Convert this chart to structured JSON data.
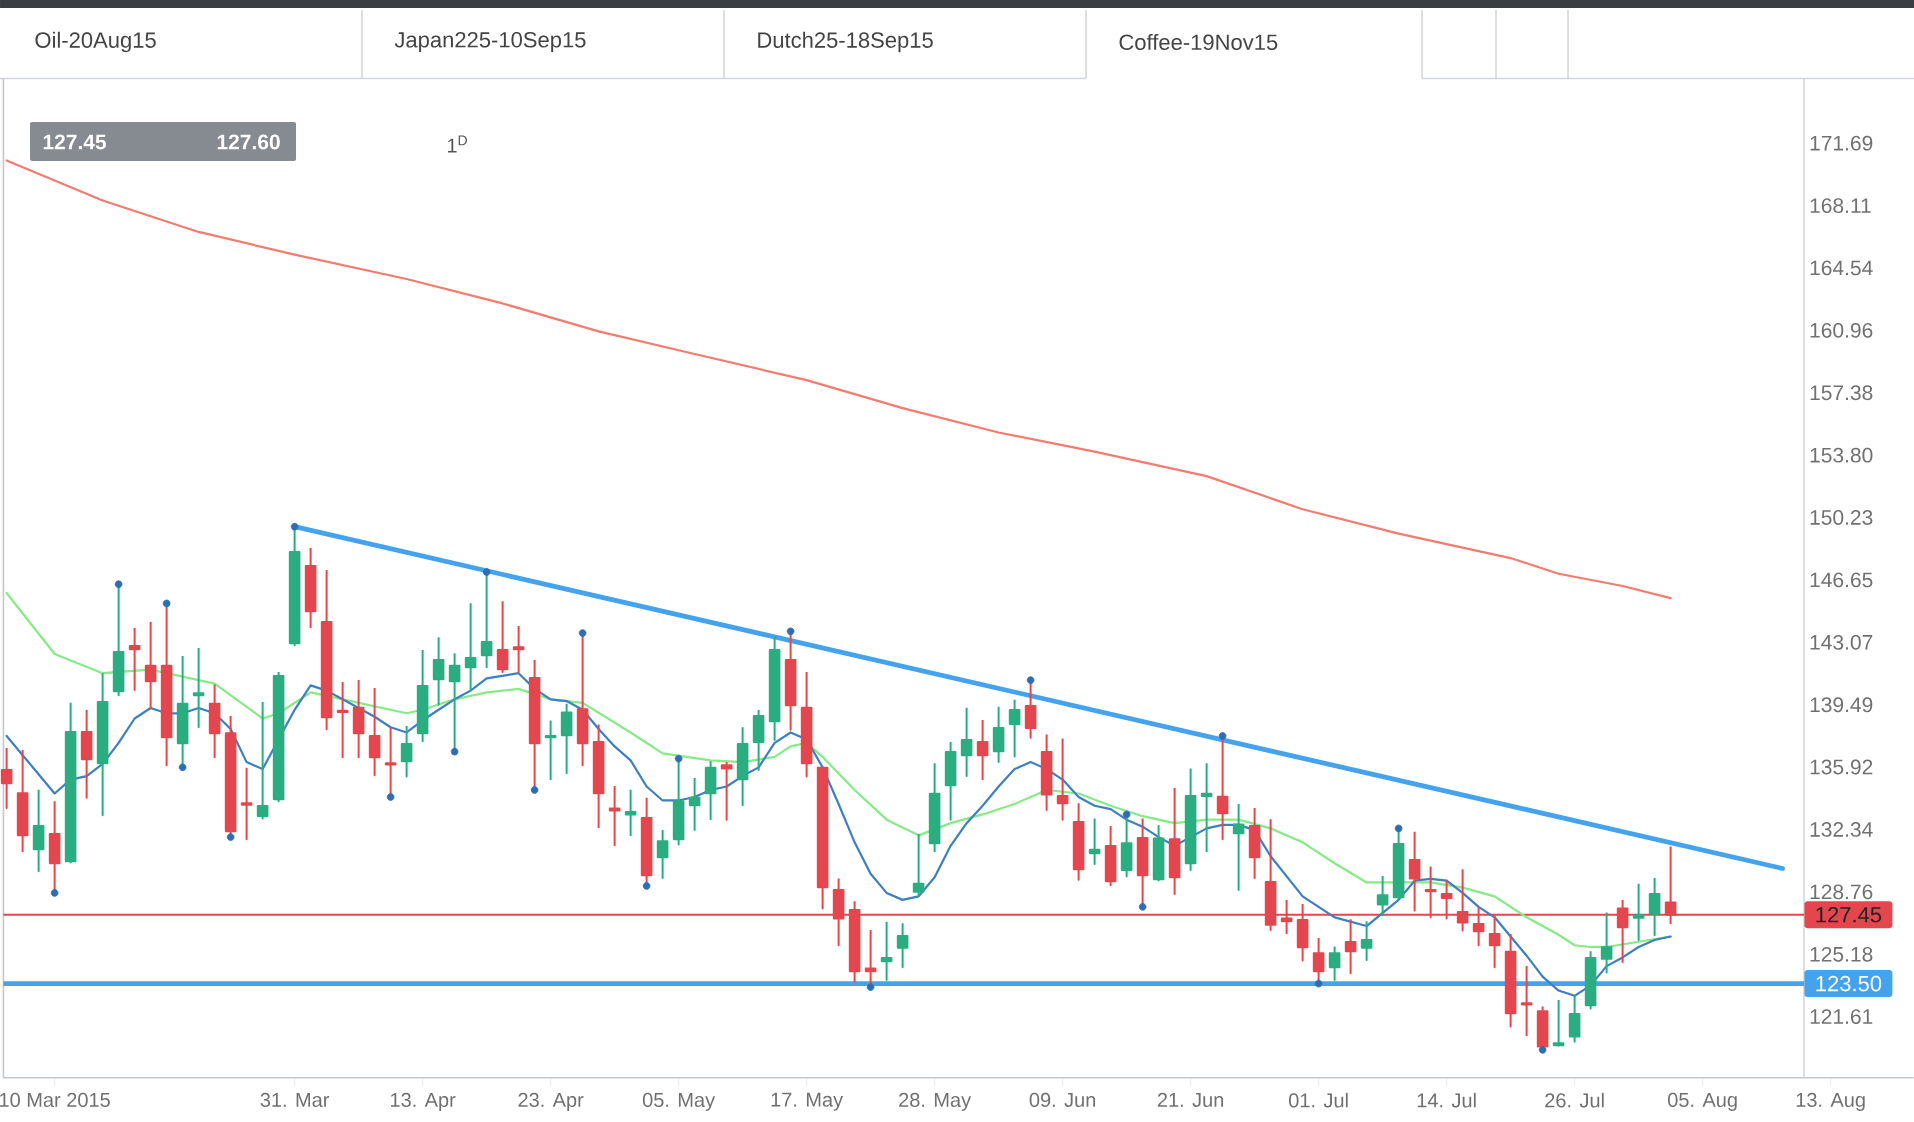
{
  "chart_data": {
    "type": "candlestick",
    "annotations": [
      "Oil-20Aug15",
      "Japan225-10Sep15",
      "Dutch25-18Sep15",
      "Coffee-19Nov15",
      "127.45",
      "127.60",
      "1$^{D}$"
    ],
    "categories": [
      null,
      null,
      null,
      "10 Mar 2015",
      null,
      null,
      null,
      null,
      null,
      null,
      null,
      null,
      null,
      null,
      null,
      null,
      null,
      null,
      "31. Mar",
      null,
      null,
      null,
      null,
      null,
      null,
      null,
      "13. Apr",
      null,
      null,
      null,
      null,
      null,
      null,
      null,
      "23. Apr",
      null,
      null,
      null,
      null,
      null,
      null,
      null,
      "05. May",
      null,
      null,
      null,
      null,
      null,
      null,
      null,
      "17. May",
      null,
      null,
      null,
      null,
      null,
      null,
      null,
      "28. May",
      null,
      null,
      null,
      null,
      null,
      null,
      null,
      "09. Jun",
      null,
      null,
      null,
      null,
      null,
      null,
      null,
      "21. Jun",
      null,
      null,
      null,
      null,
      null,
      null,
      null,
      "01. Jul",
      null,
      null,
      null,
      null,
      null,
      null,
      null,
      "14. Jul",
      null,
      null,
      null,
      null,
      null,
      null,
      null,
      "26. Jul",
      null,
      null,
      null,
      null,
      null,
      null,
      null,
      "05. Aug",
      null,
      null,
      null,
      null,
      null,
      null,
      null,
      "13. Aug"
    ],
    "ohlc": [
      [
        135.75,
        137.01,
        133.57,
        134.99
      ],
      [
        134.41,
        136.9,
        131.09,
        132.01
      ],
      [
        131.2,
        134.61,
        129.94,
        132.54
      ],
      [
        132.08,
        133.96,
        128.72,
        130.4
      ],
      [
        130.52,
        139.61,
        130.44,
        137.93
      ],
      [
        137.93,
        139.19,
        134.15,
        136.36
      ],
      [
        136.13,
        141.3,
        133.15,
        139.65
      ],
      [
        140.26,
        146.38,
        140.03,
        142.52
      ],
      [
        142.86,
        143.89,
        140.34,
        142.67
      ],
      [
        141.72,
        144.24,
        139.27,
        140.84
      ],
      [
        141.72,
        145.27,
        136.02,
        137.63
      ],
      [
        137.28,
        142.29,
        135.94,
        139.54
      ],
      [
        140.03,
        142.75,
        138.2,
        140.15
      ],
      [
        139.54,
        140.65,
        136.48,
        137.85
      ],
      [
        137.85,
        138.85,
        131.85,
        132.24
      ],
      [
        133.84,
        135.87,
        131.78,
        133.76
      ],
      [
        133.11,
        139.65,
        132.96,
        133.69
      ],
      [
        134.07,
        141.37,
        133.96,
        141.14
      ],
      [
        143.02,
        149.7,
        142.9,
        148.25
      ],
      [
        147.45,
        148.48,
        143.93,
        144.85
      ],
      [
        144.24,
        147.22,
        138.08,
        138.77
      ],
      [
        139.15,
        140.8,
        136.48,
        139.08
      ],
      [
        139.31,
        140.91,
        136.48,
        137.85
      ],
      [
        137.7,
        140.45,
        135.45,
        136.48
      ],
      [
        136.13,
        138.2,
        134.22,
        136.06
      ],
      [
        136.25,
        138.27,
        135.37,
        137.24
      ],
      [
        137.85,
        142.63,
        137.4,
        140.57
      ],
      [
        140.95,
        143.36,
        139.5,
        142.06
      ],
      [
        140.84,
        142.44,
        136.82,
        141.72
      ],
      [
        141.64,
        145.31,
        140.34,
        142.17
      ],
      [
        142.33,
        147.11,
        141.64,
        143.09
      ],
      [
        142.63,
        145.42,
        141.37,
        141.52
      ],
      [
        142.79,
        144.01,
        141.37,
        142.67
      ],
      [
        141.03,
        142.06,
        134.61,
        137.28
      ],
      [
        137.63,
        138.58,
        135.22,
        137.7
      ],
      [
        137.74,
        139.54,
        135.56,
        139.04
      ],
      [
        139.23,
        143.55,
        136.02,
        137.28
      ],
      [
        137.36,
        138.35,
        132.46,
        134.41
      ],
      [
        133.54,
        134.83,
        131.43,
        133.42
      ],
      [
        133.19,
        134.61,
        132.01,
        133.34
      ],
      [
        133.0,
        134.15,
        129.06,
        129.71
      ],
      [
        130.74,
        132.31,
        129.56,
        131.66
      ],
      [
        131.78,
        136.4,
        131.47,
        133.96
      ],
      [
        133.73,
        135.29,
        132.31,
        134.15
      ],
      [
        134.41,
        136.25,
        132.92,
        135.87
      ],
      [
        136.02,
        136.21,
        132.89,
        135.83
      ],
      [
        135.22,
        138.2,
        133.73,
        137.24
      ],
      [
        137.36,
        139.19,
        135.75,
        138.85
      ],
      [
        138.54,
        143.4,
        137.47,
        142.63
      ],
      [
        142.06,
        143.74,
        138.05,
        139.46
      ],
      [
        139.31,
        141.37,
        135.37,
        136.13
      ],
      [
        135.87,
        135.91,
        127.8,
        129.02
      ],
      [
        128.87,
        129.52,
        125.7,
        127.23
      ],
      [
        127.72,
        128.22,
        123.6,
        124.21
      ],
      [
        124.36,
        126.58,
        123.33,
        124.21
      ],
      [
        124.78,
        127.04,
        123.71,
        124.97
      ],
      [
        125.55,
        126.96,
        124.44,
        126.23
      ],
      [
        128.76,
        132.08,
        128.57,
        129.22
      ],
      [
        131.55,
        136.13,
        131.09,
        134.38
      ],
      [
        134.87,
        137.36,
        132.89,
        136.78
      ],
      [
        136.59,
        139.31,
        135.41,
        137.47
      ],
      [
        137.36,
        138.62,
        135.22,
        136.59
      ],
      [
        136.82,
        139.38,
        136.21,
        138.16
      ],
      [
        138.39,
        139.77,
        136.52,
        139.19
      ],
      [
        139.42,
        140.87,
        137.59,
        138.16
      ],
      [
        136.78,
        137.78,
        133.46,
        134.34
      ],
      [
        134.26,
        137.55,
        132.89,
        133.84
      ],
      [
        132.77,
        133.84,
        129.45,
        130.06
      ],
      [
        130.97,
        132.96,
        130.36,
        131.17
      ],
      [
        131.39,
        132.54,
        129.14,
        129.37
      ],
      [
        130.02,
        133.19,
        129.64,
        131.55
      ],
      [
        131.85,
        132.96,
        127.92,
        129.71
      ],
      [
        129.48,
        132.58,
        129.41,
        131.82
      ],
      [
        131.78,
        134.72,
        128.64,
        129.6
      ],
      [
        130.4,
        135.83,
        130.02,
        134.26
      ],
      [
        134.26,
        136.13,
        131.09,
        134.38
      ],
      [
        134.22,
        137.66,
        131.78,
        133.27
      ],
      [
        132.12,
        133.8,
        128.87,
        132.62
      ],
      [
        132.54,
        133.57,
        129.56,
        130.74
      ],
      [
        129.33,
        132.92,
        126.58,
        126.88
      ],
      [
        127.23,
        128.3,
        126.39,
        127.07
      ],
      [
        127.15,
        128.07,
        124.82,
        125.58
      ],
      [
        125.24,
        126.12,
        123.52,
        124.21
      ],
      [
        124.44,
        125.62,
        123.71,
        125.24
      ],
      [
        125.89,
        127.19,
        124.09,
        125.35
      ],
      [
        125.55,
        127.07,
        124.86,
        126.0
      ],
      [
        128.03,
        129.67,
        127.42,
        128.57
      ],
      [
        128.45,
        132.43,
        128.37,
        131.51
      ],
      [
        130.59,
        132.2,
        127.69,
        129.52
      ],
      [
        128.87,
        130.21,
        127.3,
        128.8
      ],
      [
        128.64,
        129.45,
        127.23,
        128.41
      ],
      [
        127.61,
        130.06,
        126.54,
        127.0
      ],
      [
        126.92,
        127.88,
        125.7,
        126.5
      ],
      [
        126.35,
        127.42,
        124.44,
        125.7
      ],
      [
        125.32,
        126.35,
        121.04,
        121.8
      ],
      [
        122.37,
        124.51,
        120.54,
        122.3
      ],
      [
        121.91,
        122.18,
        119.7,
        119.89
      ],
      [
        119.97,
        122.56,
        119.93,
        120.08
      ],
      [
        120.46,
        122.83,
        120.16,
        121.76
      ],
      [
        122.26,
        125.35,
        122.07,
        124.97
      ],
      [
        124.93,
        127.57,
        124.13,
        125.58
      ],
      [
        127.8,
        128.3,
        124.74,
        126.73
      ],
      [
        127.27,
        129.22,
        126.0,
        127.42
      ],
      [
        127.5,
        129.56,
        126.27,
        128.64
      ],
      [
        128.15,
        131.36,
        126.96,
        127.45
      ],
      null,
      null,
      null,
      null,
      null,
      null,
      null,
      null,
      null,
      null
    ],
    "colors": [
      "#e3474d",
      "#e3474d",
      "#2aad81",
      "#e3474d",
      "#2aad81",
      "#e3474d",
      "#2aad81",
      "#2aad81",
      "#e3474d",
      "#e3474d",
      "#e3474d",
      "#2aad81",
      "#2aad81",
      "#e3474d",
      "#e3474d",
      "#e3474d",
      "#2aad81",
      "#2aad81",
      "#2aad81",
      "#e3474d",
      "#e3474d",
      "#e3474d",
      "#e3474d",
      "#e3474d",
      "#e3474d",
      "#2aad81",
      "#2aad81",
      "#2aad81",
      "#2aad81",
      "#2aad81",
      "#2aad81",
      "#e3474d",
      "#e3474d",
      "#e3474d",
      "#2aad81",
      "#2aad81",
      "#e3474d",
      "#e3474d",
      "#e3474d",
      "#2aad81",
      "#e3474d",
      "#2aad81",
      "#2aad81",
      "#2aad81",
      "#2aad81",
      "#e3474d",
      "#2aad81",
      "#2aad81",
      "#2aad81",
      "#e3474d",
      "#e3474d",
      "#e3474d",
      "#e3474d",
      "#e3474d",
      "#e3474d",
      "#2aad81",
      "#2aad81",
      "#2aad81",
      "#2aad81",
      "#2aad81",
      "#2aad81",
      "#e3474d",
      "#2aad81",
      "#2aad81",
      "#e3474d",
      "#e3474d",
      "#e3474d",
      "#e3474d",
      "#2aad81",
      "#e3474d",
      "#2aad81",
      "#e3474d",
      "#2aad81",
      "#e3474d",
      "#2aad81",
      "#2aad81",
      "#e3474d",
      "#2aad81",
      "#e3474d",
      "#e3474d",
      "#e3474d",
      "#e3474d",
      "#e3474d",
      "#2aad81",
      "#e3474d",
      "#2aad81",
      "#2aad81",
      "#2aad81",
      "#e3474d",
      "#e3474d",
      "#e3474d",
      "#e3474d",
      "#e3474d",
      "#e3474d",
      "#e3474d",
      "#e3474d",
      "#e3474d",
      "#2aad81",
      "#2aad81",
      "#2aad81",
      "#2aad81",
      "#e3474d",
      "#2aad81",
      "#2aad81",
      "#e3474d",
      null,
      null,
      null,
      null,
      null,
      null,
      null,
      null,
      null,
      null
    ],
    "series": [
      {
        "type": "line",
        "color": "#f47b70",
        "values": [
          170.7,
          null,
          null,
          null,
          null,
          null,
          168.4,
          null,
          null,
          null,
          null,
          null,
          166.6,
          null,
          null,
          null,
          null,
          null,
          165.3,
          null,
          null,
          null,
          null,
          null,
          null,
          163.9,
          null,
          null,
          null,
          null,
          null,
          162.5,
          null,
          null,
          null,
          null,
          null,
          160.9,
          null,
          null,
          null,
          null,
          null,
          159.6,
          null,
          null,
          null,
          null,
          null,
          null,
          158.1,
          null,
          null,
          null,
          null,
          null,
          156.5,
          null,
          null,
          null,
          null,
          null,
          155.1,
          null,
          null,
          null,
          null,
          null,
          154.0,
          null,
          null,
          null,
          null,
          null,
          null,
          152.6,
          null,
          null,
          null,
          null,
          null,
          150.7,
          null,
          null,
          null,
          null,
          null,
          149.3,
          null,
          null,
          null,
          null,
          null,
          null,
          147.9,
          null,
          null,
          147.0,
          null,
          null,
          null,
          146.3,
          null,
          null,
          145.6,
          null,
          null,
          null,
          null,
          null,
          null,
          null,
          null,
          null,
          null
        ]
      },
      {
        "type": "line",
        "color": "#86ea86",
        "values": [
          145.9,
          null,
          null,
          142.4,
          null,
          null,
          141.3,
          null,
          null,
          141.5,
          null,
          null,
          140.9,
          140.7,
          null,
          null,
          138.7,
          139.0,
          null,
          140.2,
          null,
          null,
          139.6,
          null,
          null,
          139.0,
          139.2,
          null,
          139.8,
          null,
          140.2,
          null,
          140.4,
          null,
          139.8,
          null,
          139.6,
          null,
          null,
          137.9,
          null,
          136.7,
          null,
          null,
          136.3,
          null,
          136.2,
          null,
          136.5,
          137.1,
          137.3,
          136.5,
          null,
          134.6,
          null,
          132.9,
          null,
          132.0,
          null,
          132.7,
          null,
          133.2,
          null,
          133.8,
          null,
          134.6,
          null,
          134.4,
          null,
          133.7,
          null,
          133.1,
          null,
          132.7,
          null,
          132.9,
          null,
          132.9,
          null,
          132.4,
          null,
          131.6,
          null,
          130.4,
          null,
          129.3,
          null,
          129.3,
          null,
          129.3,
          null,
          129.0,
          null,
          128.5,
          null,
          127.3,
          null,
          126.3,
          125.7,
          125.6,
          125.6,
          null,
          125.9,
          null,
          126.2,
          null,
          null,
          null,
          null,
          null,
          null,
          null,
          null,
          null,
          null
        ]
      },
      {
        "type": "line",
        "color": "#3d7fc0",
        "values": [
          137.7,
          null,
          null,
          134.4,
          135.2,
          135.4,
          136.1,
          137.3,
          138.7,
          139.3,
          139.0,
          139.0,
          139.3,
          139.0,
          138.1,
          136.2,
          135.8,
          null,
          139.2,
          140.6,
          140.3,
          139.8,
          139.3,
          138.8,
          138.2,
          137.9,
          138.6,
          139.2,
          139.8,
          140.3,
          141.0,
          null,
          141.3,
          140.4,
          139.8,
          139.7,
          139.2,
          138.1,
          137.1,
          136.3,
          134.8,
          134.0,
          134.0,
          134.2,
          134.6,
          134.8,
          135.4,
          135.9,
          137.3,
          137.9,
          137.5,
          135.9,
          133.8,
          131.6,
          129.8,
          128.7,
          128.3,
          128.5,
          129.6,
          131.4,
          132.7,
          133.7,
          134.8,
          135.8,
          136.2,
          135.8,
          135.2,
          134.2,
          133.7,
          133.5,
          132.9,
          132.5,
          131.9,
          131.4,
          131.9,
          132.4,
          132.6,
          132.6,
          132.3,
          130.8,
          null,
          128.5,
          null,
          127.3,
          null,
          126.8,
          null,
          128.3,
          129.4,
          129.5,
          129.4,
          128.7,
          127.9,
          127.3,
          126.2,
          125.1,
          123.9,
          123.1,
          122.8,
          123.4,
          124.5,
          125.0,
          125.6,
          126.0,
          126.2,
          null,
          null,
          null,
          null,
          null,
          null,
          null,
          null,
          null,
          null
        ]
      },
      {
        "type": "line",
        "color": "#45a3ee",
        "values": [
          null,
          null,
          null,
          null,
          null,
          null,
          null,
          null,
          null,
          null,
          null,
          null,
          null,
          null,
          null,
          null,
          null,
          null,
          149.7,
          null,
          null,
          null,
          null,
          null,
          null,
          null,
          null,
          null,
          null,
          null,
          null,
          null,
          null,
          null,
          null,
          null,
          null,
          null,
          null,
          null,
          null,
          null,
          null,
          null,
          null,
          null,
          null,
          null,
          null,
          null,
          null,
          null,
          null,
          null,
          null,
          null,
          null,
          null,
          null,
          null,
          null,
          null,
          null,
          null,
          null,
          null,
          null,
          null,
          null,
          null,
          null,
          null,
          null,
          null,
          null,
          null,
          null,
          null,
          null,
          null,
          null,
          null,
          null,
          null,
          null,
          null,
          null,
          null,
          null,
          null,
          null,
          null,
          null,
          null,
          null,
          null,
          null,
          null,
          null,
          null,
          null,
          null,
          null,
          null,
          null,
          null,
          null,
          null,
          null,
          null,
          null,
          130.1,
          null,
          null,
          null
        ]
      },
      {
        "type": "scatter",
        "marker": "circle",
        "color": "#2f6db3",
        "values": [
          null,
          null,
          null,
          128.7,
          null,
          null,
          null,
          146.4,
          null,
          null,
          145.3,
          135.9,
          null,
          null,
          131.9,
          null,
          null,
          null,
          149.7,
          null,
          null,
          null,
          null,
          null,
          134.2,
          null,
          null,
          null,
          136.8,
          null,
          147.1,
          null,
          null,
          134.6,
          null,
          null,
          143.6,
          null,
          null,
          null,
          129.1,
          null,
          136.4,
          null,
          null,
          null,
          null,
          null,
          null,
          143.7,
          null,
          null,
          null,
          null,
          123.3,
          null,
          null,
          null,
          null,
          null,
          null,
          null,
          null,
          null,
          140.9,
          null,
          null,
          null,
          null,
          null,
          133.2,
          127.9,
          null,
          null,
          null,
          null,
          137.7,
          null,
          null,
          null,
          null,
          null,
          123.5,
          null,
          null,
          null,
          null,
          132.4,
          null,
          null,
          null,
          null,
          null,
          null,
          null,
          null,
          119.7,
          null,
          null,
          null,
          null,
          null,
          null,
          null,
          null,
          null,
          null,
          null,
          null,
          null,
          null,
          null,
          null,
          null,
          null
        ]
      }
    ],
    "ylim": [
      118.1,
      175.4
    ],
    "yticks": [
      121.61,
      125.18,
      128.76,
      132.34,
      135.92,
      139.49,
      143.07,
      146.65,
      150.23,
      {
        "value": 153.8,
        "label": "153.80"
      },
      157.38,
      160.96,
      164.54,
      168.11,
      171.69
    ],
    "ref_lines": [
      {
        "axis": "y",
        "value": 127.45,
        "label": "127.45",
        "color": "#e3474d"
      },
      {
        "axis": "y",
        "value": 123.5,
        "label": "123.50",
        "color": "#45a3ee"
      }
    ]
  }
}
